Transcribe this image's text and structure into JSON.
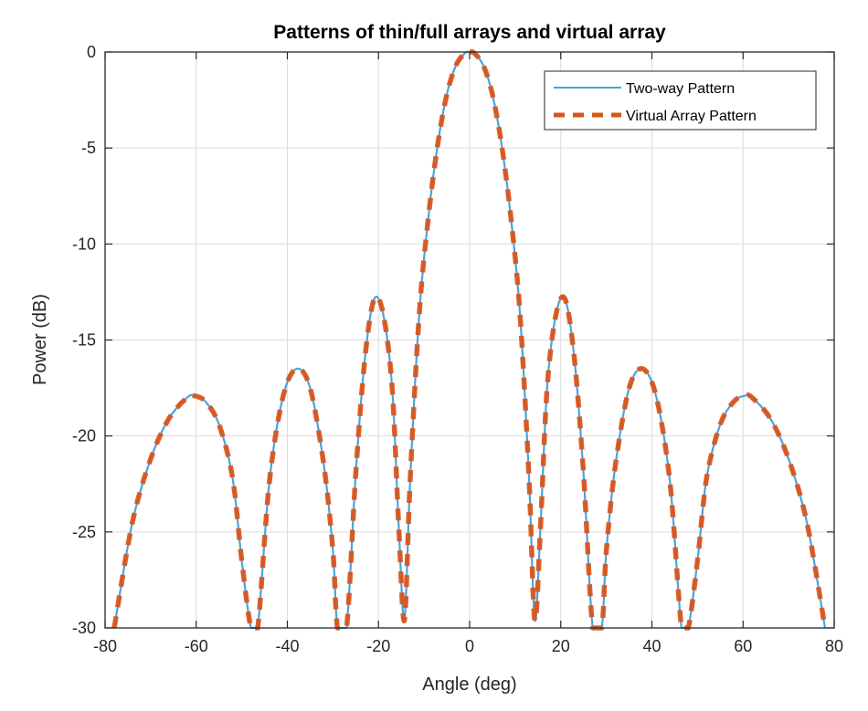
{
  "chart_data": {
    "type": "line",
    "title": "Patterns of thin/full arrays and virtual array",
    "xlabel": "Angle (deg)",
    "ylabel": "Power (dB)",
    "xlim": [
      -80,
      80
    ],
    "ylim": [
      -30,
      0
    ],
    "xticks": [
      -80,
      -60,
      -40,
      -20,
      0,
      20,
      40,
      60,
      80
    ],
    "yticks": [
      0,
      -5,
      -10,
      -15,
      -20,
      -25,
      -30
    ],
    "grid": true,
    "legend_position": "upper right",
    "series": [
      {
        "name": "Two-way Pattern",
        "color": "#0072BD",
        "style": "solid",
        "x": [
          -78,
          -74,
          -70,
          -66,
          -62,
          -60.5,
          -58,
          -55,
          -52,
          -50,
          -48,
          -46.5,
          -44,
          -41,
          -38,
          -35,
          -32,
          -30,
          -29,
          -27,
          -25,
          -23,
          -21,
          -19,
          -17,
          -15.5,
          -14.3,
          -13,
          -11,
          -9,
          -7,
          -5,
          -3,
          -1,
          0,
          1,
          3,
          5,
          7,
          9,
          11,
          13,
          14.3,
          15.5,
          17,
          19,
          21,
          23,
          25,
          27,
          29,
          30,
          32,
          35,
          38,
          41,
          44,
          46.5,
          48,
          50,
          52,
          55,
          58,
          60.5,
          62,
          66,
          70,
          74,
          78
        ],
        "y": [
          -30,
          -24.5,
          -21.2,
          -19.1,
          -18.0,
          -17.9,
          -18.2,
          -19.4,
          -22.2,
          -26.5,
          -30,
          -30,
          -22.5,
          -18.0,
          -16.5,
          -17.5,
          -21.5,
          -26.0,
          -30,
          -30,
          -22.0,
          -16.0,
          -12.9,
          -13.6,
          -17.5,
          -25.0,
          -29.6,
          -22.0,
          -13.5,
          -8.5,
          -4.8,
          -2.2,
          -0.7,
          -0.05,
          0,
          -0.05,
          -0.7,
          -2.2,
          -4.8,
          -8.5,
          -13.5,
          -22.0,
          -29.6,
          -25.0,
          -17.5,
          -13.6,
          -12.9,
          -16.0,
          -22.0,
          -30,
          -30,
          -26.0,
          -21.5,
          -17.5,
          -16.5,
          -18.0,
          -22.5,
          -30,
          -30,
          -26.5,
          -22.2,
          -19.4,
          -18.2,
          -17.9,
          -18.0,
          -19.1,
          -21.2,
          -24.5,
          -30
        ]
      },
      {
        "name": "Virtual Array Pattern",
        "color": "#D95319",
        "style": "dashed",
        "same_as": "Two-way Pattern"
      }
    ],
    "annotations": {
      "mainlobe_peak": {
        "x": 0,
        "y": 0
      },
      "first_sidelobes": {
        "x": [
          -21,
          21
        ],
        "y": -12.9
      },
      "second_sidelobes": {
        "x": [
          -38,
          38
        ],
        "y": -16.5
      },
      "third_sidelobes": {
        "x": [
          -61,
          61
        ],
        "y": -17.9
      }
    }
  }
}
